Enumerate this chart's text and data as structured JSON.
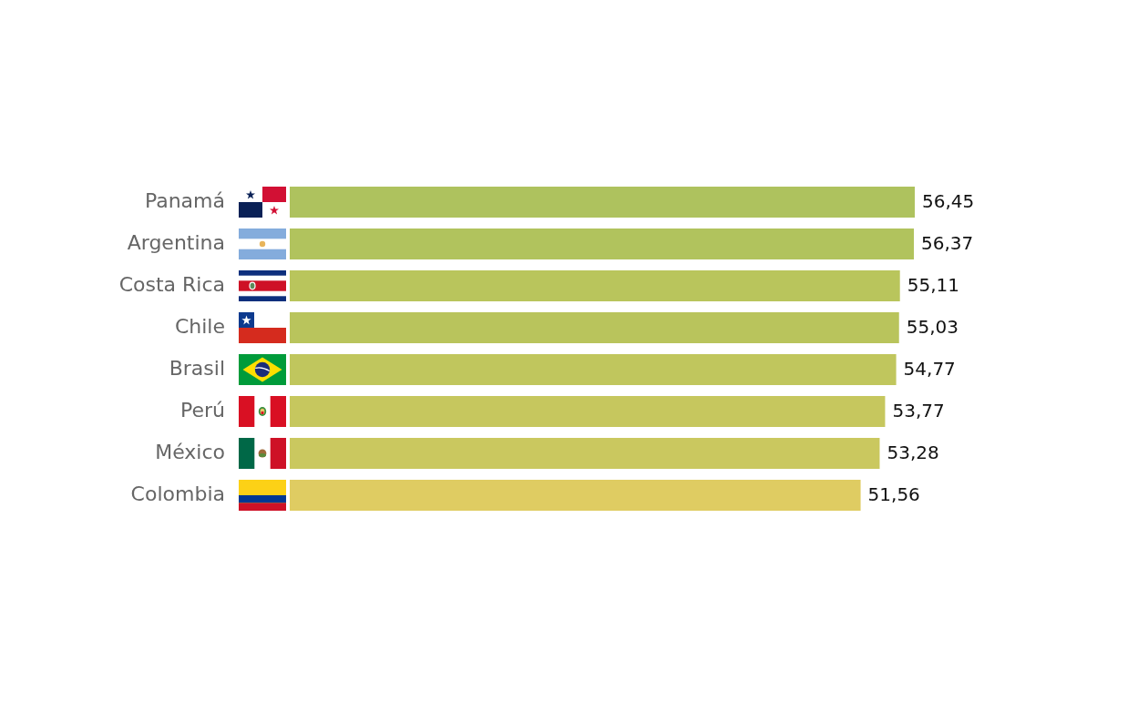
{
  "chart_data": {
    "type": "bar",
    "orientation": "horizontal",
    "tick_labels": "y",
    "categories": [
      "Panamá",
      "Argentina",
      "Costa Rica",
      "Chile",
      "Brasil",
      "Perú",
      "México",
      "Colombia"
    ],
    "values": [
      56.45,
      56.37,
      55.11,
      55.03,
      54.77,
      53.77,
      53.28,
      51.56
    ],
    "colors": [
      "#aec25e",
      "#b1c35d",
      "#b9c55c",
      "#b9c45c",
      "#c0c65d",
      "#c6c75e",
      "#cac85f",
      "#dfcc62"
    ],
    "value_labels": [
      "56,45",
      "56,37",
      "55,11",
      "55,03",
      "54,77",
      "53,77",
      "53,28",
      "51,56"
    ]
  }
}
